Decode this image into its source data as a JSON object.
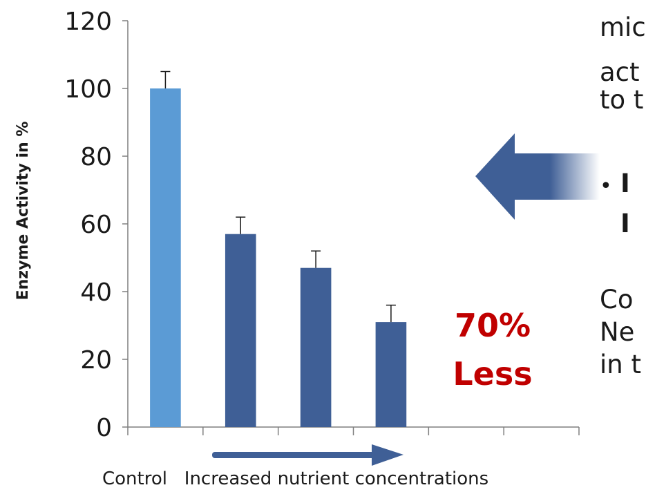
{
  "chart_data": {
    "type": "bar",
    "categories": [
      "Control",
      "",
      "",
      ""
    ],
    "values": [
      100,
      57,
      47,
      31
    ],
    "errors": [
      5,
      5,
      5,
      5
    ],
    "ylabel": "Enzyme Activity in %",
    "xlabel": "Control   Increased nutrient concentrations",
    "ylim": [
      0,
      120
    ],
    "yticks": [
      0,
      20,
      40,
      60,
      80,
      100,
      120
    ],
    "grid": false,
    "bar_colors": [
      "#5b9bd5",
      "#3f5f96",
      "#3f5f96",
      "#3f5f96"
    ],
    "annotation": {
      "line1": "70%",
      "line2": "Less",
      "color": "#c00000"
    }
  },
  "side_text": {
    "line1": "mic",
    "line2": "act",
    "line3": "to t",
    "bullet_line1": "I",
    "bullet_line2": "I",
    "lower_line1": "Co",
    "lower_line2": "Ne",
    "lower_line3": "in t"
  },
  "colors": {
    "axis": "#7f7f7f",
    "arrow": "#3f5f96",
    "control_bar": "#5b9bd5",
    "treatment_bar": "#3f5f96"
  }
}
